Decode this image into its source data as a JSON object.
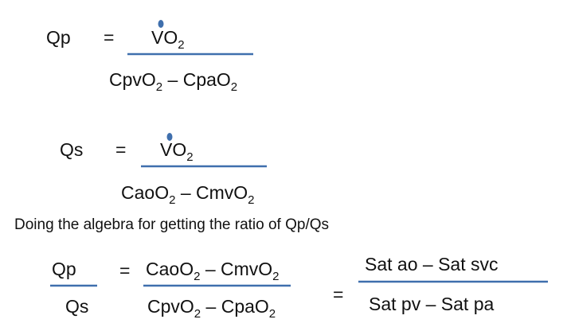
{
  "formulas": [
    {
      "lhs": "Qp",
      "equals": "=",
      "numerator": [
        "VO",
        "2"
      ],
      "denominator": [
        "CpvO",
        "2",
        " – CpaO",
        "2"
      ]
    },
    {
      "lhs": "Qs",
      "equals": "=",
      "numerator": [
        "VO",
        "2"
      ],
      "denominator": [
        "CaoO",
        "2",
        " – CmvO",
        "2"
      ]
    }
  ],
  "sentence": "Doing the algebra for getting the ratio of Qp/Qs",
  "ratio": {
    "left": {
      "numerator": "Qp",
      "denominator": "Qs"
    },
    "equals_1": "=",
    "middle": {
      "numerator": [
        "CaoO",
        "2",
        " – CmvO",
        "2"
      ],
      "denominator": [
        "CpvO",
        "2",
        " – CpaO",
        "2"
      ]
    },
    "equals_2": "=",
    "right": {
      "numerator": "Sat ao – Sat svc",
      "denominator": "Sat pv – Sat pa"
    }
  }
}
